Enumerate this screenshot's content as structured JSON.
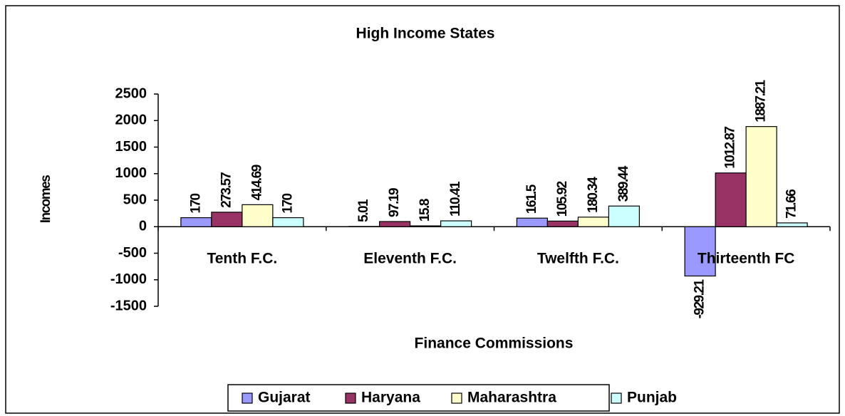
{
  "chart_data": {
    "type": "bar",
    "title": "High Income States",
    "x_label": "Finance Commissions",
    "y_label": "Incomes",
    "categories": [
      "Tenth F.C.",
      "Eleventh F.C.",
      "Twelfth F.C.",
      "Thirteenth FC"
    ],
    "series": [
      {
        "name": "Gujarat",
        "color": "#9999ff",
        "values": [
          170,
          5.01,
          161.5,
          -929.21
        ]
      },
      {
        "name": "Haryana",
        "color": "#993366",
        "values": [
          273.57,
          97.19,
          105.92,
          1012.87
        ]
      },
      {
        "name": "Maharashtra",
        "color": "#ffffcc",
        "values": [
          414.69,
          15.8,
          180.34,
          1887.21
        ]
      },
      {
        "name": "Punjab",
        "color": "#ccffff",
        "values": [
          170,
          110.41,
          389.44,
          71.66
        ]
      }
    ],
    "ylim": [
      -1500,
      2500
    ],
    "yticks": [
      -1500,
      -1000,
      -500,
      0,
      500,
      1000,
      1500,
      2000,
      2500
    ],
    "legend": "bottom"
  }
}
